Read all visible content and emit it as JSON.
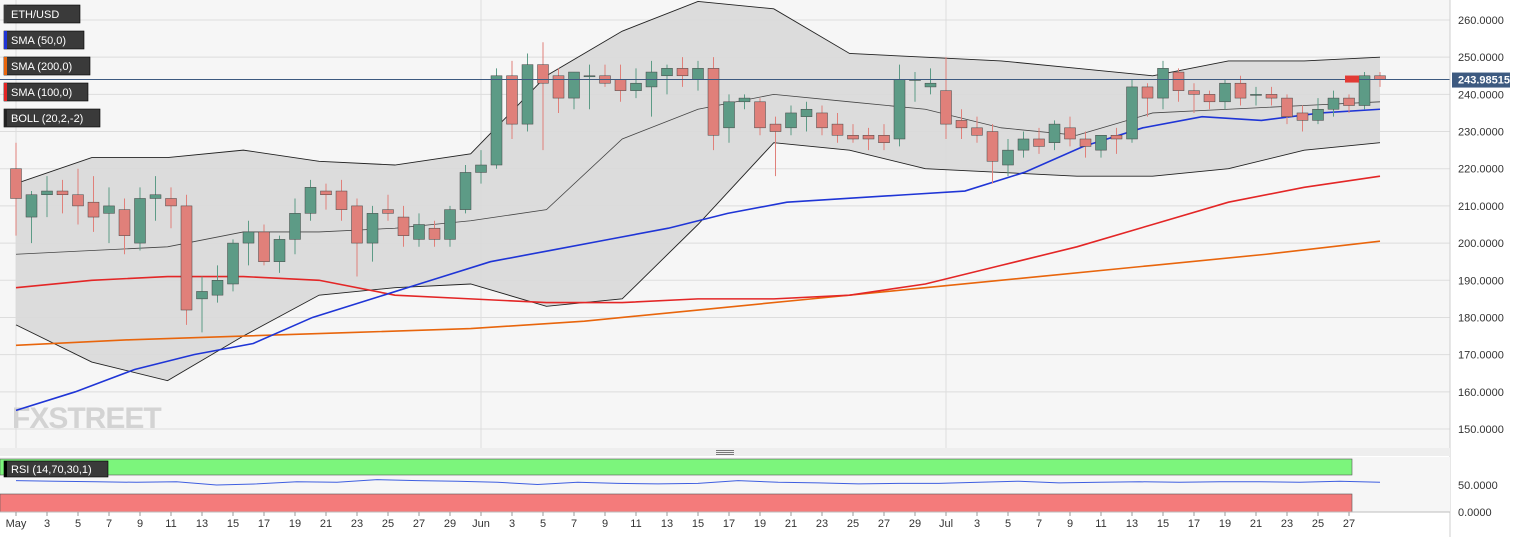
{
  "symbol": "ETH/USD",
  "indicators": [
    {
      "label": "SMA (50,0)",
      "color": "#1f35d6"
    },
    {
      "label": "SMA (200,0)",
      "color": "#e8650c"
    },
    {
      "label": "SMA (100,0)",
      "color": "#e32626"
    },
    {
      "label": "BOLL (20,2,-2)",
      "color": "#222222"
    }
  ],
  "watermark": "FXSTREET",
  "colors": {
    "up": "#5d9b86",
    "down": "#e0807a",
    "band_fill": "#d9d9d9",
    "rsi_upper": "#7cf57c",
    "rsi_lower": "#f47b7b",
    "rsi_line": "#3f5fe0",
    "price_marker": "#e23b35"
  },
  "chart_data": {
    "type": "candlestick",
    "price_axis": {
      "min": 145,
      "max": 265,
      "ticks": [
        "260.0000",
        "250.0000",
        "240.0000",
        "230.0000",
        "220.0000",
        "210.0000",
        "200.0000",
        "190.0000",
        "180.0000",
        "170.0000",
        "160.0000",
        "150.0000"
      ]
    },
    "current_price": {
      "value": 243.98515,
      "label": "243.98515"
    },
    "x_axis_labels": [
      "May",
      "3",
      "5",
      "7",
      "9",
      "11",
      "13",
      "15",
      "17",
      "19",
      "21",
      "23",
      "25",
      "27",
      "29",
      "Jun",
      "3",
      "5",
      "7",
      "9",
      "11",
      "13",
      "15",
      "17",
      "19",
      "21",
      "23",
      "25",
      "27",
      "29",
      "Jul",
      "3",
      "5",
      "7",
      "9",
      "11",
      "13",
      "15",
      "17",
      "19",
      "21",
      "23",
      "25",
      "27"
    ],
    "candles": [
      {
        "o": 220,
        "h": 227,
        "l": 202,
        "c": 212
      },
      {
        "o": 207,
        "h": 214,
        "l": 200,
        "c": 213
      },
      {
        "o": 213,
        "h": 218,
        "l": 207,
        "c": 214
      },
      {
        "o": 214,
        "h": 217,
        "l": 208,
        "c": 213
      },
      {
        "o": 213,
        "h": 220,
        "l": 205,
        "c": 210
      },
      {
        "o": 211,
        "h": 218,
        "l": 203,
        "c": 207
      },
      {
        "o": 208,
        "h": 215,
        "l": 200,
        "c": 210
      },
      {
        "o": 209,
        "h": 212,
        "l": 197,
        "c": 202
      },
      {
        "o": 200,
        "h": 215,
        "l": 198,
        "c": 212
      },
      {
        "o": 212,
        "h": 218,
        "l": 206,
        "c": 213
      },
      {
        "o": 212,
        "h": 215,
        "l": 204,
        "c": 210
      },
      {
        "o": 210,
        "h": 213,
        "l": 178,
        "c": 182
      },
      {
        "o": 185,
        "h": 191,
        "l": 176,
        "c": 187
      },
      {
        "o": 186,
        "h": 194,
        "l": 184,
        "c": 190
      },
      {
        "o": 189,
        "h": 201,
        "l": 187,
        "c": 200
      },
      {
        "o": 200,
        "h": 206,
        "l": 194,
        "c": 203
      },
      {
        "o": 203,
        "h": 205,
        "l": 194,
        "c": 195
      },
      {
        "o": 195,
        "h": 202,
        "l": 192,
        "c": 201
      },
      {
        "o": 201,
        "h": 212,
        "l": 197,
        "c": 208
      },
      {
        "o": 208,
        "h": 217,
        "l": 206,
        "c": 215
      },
      {
        "o": 214,
        "h": 216,
        "l": 209,
        "c": 213
      },
      {
        "o": 214,
        "h": 217,
        "l": 206,
        "c": 209
      },
      {
        "o": 210,
        "h": 212,
        "l": 191,
        "c": 200
      },
      {
        "o": 200,
        "h": 210,
        "l": 195,
        "c": 208
      },
      {
        "o": 209,
        "h": 213,
        "l": 206,
        "c": 208
      },
      {
        "o": 207,
        "h": 210,
        "l": 199,
        "c": 202
      },
      {
        "o": 201,
        "h": 208,
        "l": 199,
        "c": 205
      },
      {
        "o": 204,
        "h": 206,
        "l": 199,
        "c": 201
      },
      {
        "o": 201,
        "h": 210,
        "l": 199,
        "c": 209
      },
      {
        "o": 209,
        "h": 221,
        "l": 208,
        "c": 219
      },
      {
        "o": 219,
        "h": 225,
        "l": 216,
        "c": 221
      },
      {
        "o": 221,
        "h": 247,
        "l": 220,
        "c": 245
      },
      {
        "o": 245,
        "h": 249,
        "l": 228,
        "c": 232
      },
      {
        "o": 232,
        "h": 251,
        "l": 230,
        "c": 248
      },
      {
        "o": 248,
        "h": 254,
        "l": 225,
        "c": 243
      },
      {
        "o": 245,
        "h": 247,
        "l": 235,
        "c": 239
      },
      {
        "o": 239,
        "h": 246,
        "l": 236,
        "c": 246
      },
      {
        "o": 245,
        "h": 248,
        "l": 236,
        "c": 245
      },
      {
        "o": 245,
        "h": 248,
        "l": 242,
        "c": 243
      },
      {
        "o": 244,
        "h": 248,
        "l": 238,
        "c": 241
      },
      {
        "o": 241,
        "h": 247,
        "l": 239,
        "c": 243
      },
      {
        "o": 242,
        "h": 249,
        "l": 234,
        "c": 246
      },
      {
        "o": 245,
        "h": 248,
        "l": 240,
        "c": 247
      },
      {
        "o": 247,
        "h": 250,
        "l": 242,
        "c": 245
      },
      {
        "o": 244,
        "h": 249,
        "l": 241,
        "c": 247
      },
      {
        "o": 247,
        "h": 250,
        "l": 225,
        "c": 229
      },
      {
        "o": 231,
        "h": 240,
        "l": 227,
        "c": 238
      },
      {
        "o": 238,
        "h": 240,
        "l": 236,
        "c": 239
      },
      {
        "o": 238,
        "h": 239,
        "l": 229,
        "c": 231
      },
      {
        "o": 232,
        "h": 234,
        "l": 218,
        "c": 230
      },
      {
        "o": 231,
        "h": 237,
        "l": 229,
        "c": 235
      },
      {
        "o": 234,
        "h": 238,
        "l": 230,
        "c": 236
      },
      {
        "o": 235,
        "h": 237,
        "l": 229,
        "c": 231
      },
      {
        "o": 232,
        "h": 235,
        "l": 227,
        "c": 229
      },
      {
        "o": 229,
        "h": 232,
        "l": 227,
        "c": 228
      },
      {
        "o": 229,
        "h": 231,
        "l": 225,
        "c": 228
      },
      {
        "o": 229,
        "h": 232,
        "l": 225,
        "c": 227
      },
      {
        "o": 228,
        "h": 248,
        "l": 226,
        "c": 244
      },
      {
        "o": 244,
        "h": 246,
        "l": 238,
        "c": 244
      },
      {
        "o": 242,
        "h": 247,
        "l": 240,
        "c": 243
      },
      {
        "o": 241,
        "h": 250,
        "l": 228,
        "c": 232
      },
      {
        "o": 233,
        "h": 236,
        "l": 228,
        "c": 231
      },
      {
        "o": 231,
        "h": 234,
        "l": 227,
        "c": 229
      },
      {
        "o": 230,
        "h": 232,
        "l": 216,
        "c": 222
      },
      {
        "o": 221,
        "h": 228,
        "l": 218,
        "c": 225
      },
      {
        "o": 225,
        "h": 230,
        "l": 223,
        "c": 228
      },
      {
        "o": 228,
        "h": 231,
        "l": 224,
        "c": 226
      },
      {
        "o": 227,
        "h": 233,
        "l": 225,
        "c": 232
      },
      {
        "o": 231,
        "h": 234,
        "l": 226,
        "c": 228
      },
      {
        "o": 228,
        "h": 230,
        "l": 223,
        "c": 226
      },
      {
        "o": 225,
        "h": 229,
        "l": 223,
        "c": 229
      },
      {
        "o": 229,
        "h": 231,
        "l": 224,
        "c": 228
      },
      {
        "o": 228,
        "h": 244,
        "l": 227,
        "c": 242
      },
      {
        "o": 242,
        "h": 243,
        "l": 234,
        "c": 239
      },
      {
        "o": 239,
        "h": 249,
        "l": 236,
        "c": 247
      },
      {
        "o": 246,
        "h": 247,
        "l": 238,
        "c": 241
      },
      {
        "o": 241,
        "h": 243,
        "l": 235,
        "c": 240
      },
      {
        "o": 240,
        "h": 241,
        "l": 236,
        "c": 238
      },
      {
        "o": 238,
        "h": 244,
        "l": 236,
        "c": 243
      },
      {
        "o": 243,
        "h": 245,
        "l": 237,
        "c": 239
      },
      {
        "o": 240,
        "h": 242,
        "l": 237,
        "c": 240
      },
      {
        "o": 240,
        "h": 242,
        "l": 237,
        "c": 239
      },
      {
        "o": 239,
        "h": 240,
        "l": 232,
        "c": 234
      },
      {
        "o": 235,
        "h": 237,
        "l": 230,
        "c": 233
      },
      {
        "o": 233,
        "h": 239,
        "l": 232,
        "c": 236
      },
      {
        "o": 236,
        "h": 241,
        "l": 234,
        "c": 239
      },
      {
        "o": 239,
        "h": 240,
        "l": 235,
        "c": 237
      },
      {
        "o": 237,
        "h": 246,
        "l": 236,
        "c": 245
      },
      {
        "o": 245,
        "h": 246,
        "l": 242,
        "c": 244
      }
    ],
    "sma50": [
      155,
      160,
      166,
      170,
      173,
      180,
      185,
      190,
      195,
      198,
      201,
      204,
      208,
      211,
      212,
      213,
      214,
      219,
      226,
      231,
      234,
      233,
      235,
      236
    ],
    "sma100": [
      188,
      190,
      191,
      191,
      190,
      186,
      185,
      184,
      184,
      185,
      185,
      186,
      189,
      194,
      199,
      205,
      211,
      215,
      218
    ],
    "sma200": [
      172.5,
      174,
      175,
      176,
      177,
      179,
      182,
      185,
      188,
      191,
      194,
      197,
      200.5
    ],
    "boll_upper": [
      216,
      223,
      223,
      225,
      222,
      221,
      224,
      245,
      257,
      265,
      263,
      251,
      250,
      249,
      247,
      245,
      249,
      249,
      250
    ],
    "boll_lower": [
      178,
      168,
      163,
      175,
      186,
      188,
      189,
      183,
      185,
      205,
      227,
      225,
      220,
      219,
      218,
      218,
      220,
      225,
      227
    ],
    "boll_middle": [
      197,
      198,
      199,
      203,
      203,
      204,
      206,
      209,
      228,
      236,
      240,
      238,
      236,
      231,
      229,
      235,
      236,
      237,
      238
    ],
    "rsi": {
      "label": "RSI (14,70,30,1)",
      "ticks": [
        "50.0000",
        "0.0000"
      ],
      "values": [
        58,
        57,
        56,
        55,
        56,
        50,
        52,
        56,
        55,
        60,
        58,
        57,
        55,
        51,
        55,
        53,
        52,
        53,
        58,
        55,
        54,
        52,
        53,
        53,
        55,
        57,
        54,
        55,
        56,
        55,
        56,
        56,
        55,
        57,
        55
      ]
    }
  }
}
